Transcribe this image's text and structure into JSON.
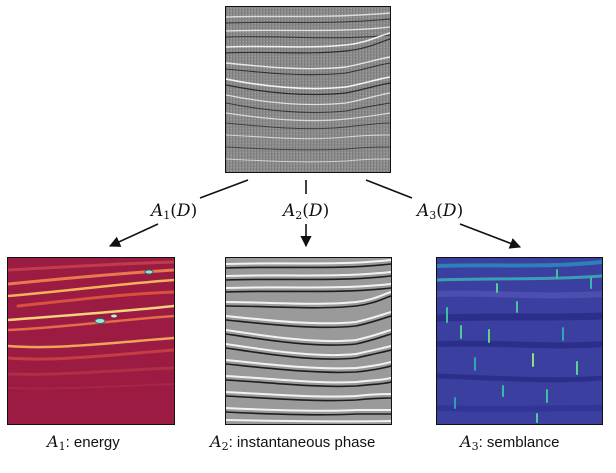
{
  "input": {
    "name": "D"
  },
  "operators": [
    {
      "symbol": "A",
      "index": "1",
      "arg": "D"
    },
    {
      "symbol": "A",
      "index": "2",
      "arg": "D"
    },
    {
      "symbol": "A",
      "index": "3",
      "arg": "D"
    }
  ],
  "outputs": [
    {
      "symbol": "A",
      "index": "1",
      "text": ": energy",
      "colormap": "#9b1b43"
    },
    {
      "symbol": "A",
      "index": "2",
      "text": ": instantaneous phase",
      "colormap": "#7a7a7a"
    },
    {
      "symbol": "A",
      "index": "3",
      "text": ": semblance",
      "colormap": "#3b3fa0"
    }
  ]
}
